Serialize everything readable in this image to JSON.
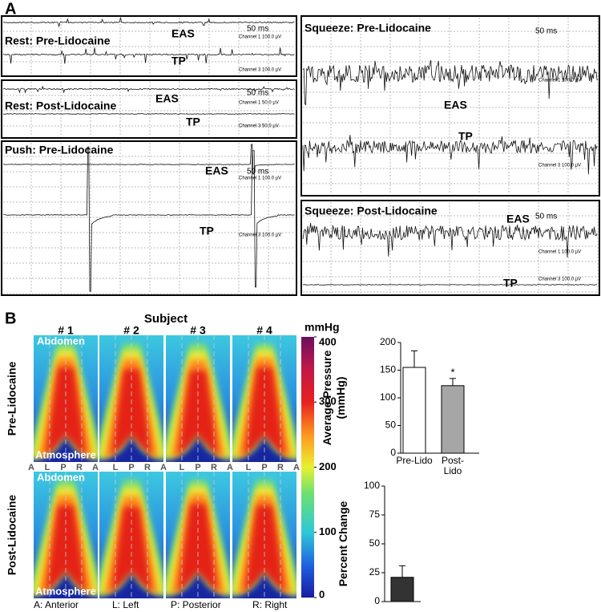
{
  "panel_a": {
    "label": "A",
    "panels": [
      {
        "title": "Rest: Pre-Lidocaine",
        "signals": [
          "EAS",
          "TP"
        ],
        "scale": "50 ms",
        "channels": [
          "Channel 1  100.0 µV",
          "Channel 3  100.0 µV"
        ]
      },
      {
        "title": "Rest: Post-Lidocaine",
        "signals": [
          "EAS",
          "TP"
        ],
        "scale": "50 ms",
        "channels": [
          "Channel 1  50.0 µV",
          "Channel 3  50.0 µV"
        ]
      },
      {
        "title": "Push: Pre-Lidocaine",
        "signals": [
          "EAS",
          "TP"
        ],
        "scale": "50 ms",
        "channels": [
          "Channel 1  100.0 µV",
          "Channel 3  100.0 µV"
        ]
      },
      {
        "title": "Squeeze: Pre-Lidocaine",
        "signals": [
          "EAS",
          "TP"
        ],
        "scale": "50 ms",
        "channels": [
          "Channel 1  100.0 µV",
          "Channel 3  100.0 µV"
        ]
      },
      {
        "title": "Squeeze: Post-Lidocaine",
        "signals": [
          "EAS",
          "TP"
        ],
        "scale": "50 ms",
        "channels": [
          "Channel 1  100.0 µV",
          "Channel 3  100.0 µV"
        ]
      }
    ]
  },
  "panel_b": {
    "label": "B",
    "heading": "Subject",
    "subjects": [
      "# 1",
      "# 2",
      "# 3",
      "# 4"
    ],
    "conditions": [
      "Pre-Lidocaine",
      "Post-Lidocaine"
    ],
    "top_label": "Abdomen",
    "bottom_label": "Atmosphere",
    "axis_letters": [
      "A",
      "L",
      "P",
      "R",
      "A"
    ],
    "legend": [
      "A: Anterior",
      "L: Left",
      "P: Posterior",
      "R: Right"
    ],
    "colorbar": {
      "unit": "mmHg",
      "lim": [
        0,
        400
      ],
      "ticks": [
        0,
        100,
        200,
        300,
        400
      ]
    }
  },
  "chart_data": [
    {
      "type": "bar",
      "y_label": "Average Pressure (mmHg)",
      "categories": [
        "Pre-Lido",
        "Post-Lido"
      ],
      "series": [
        {
          "values": [
            155,
            122
          ],
          "errors": [
            30,
            13
          ],
          "colors": [
            "#ffffff",
            "#a6a6a6"
          ]
        }
      ],
      "annotation": "*",
      "ylim": [
        0,
        200
      ],
      "yticks": [
        0,
        50,
        100,
        150,
        200
      ]
    },
    {
      "type": "bar",
      "y_label": "Percent Change",
      "series": [
        {
          "values": [
            21
          ],
          "errors": [
            10
          ],
          "color": "#333333"
        }
      ],
      "ylim": [
        0,
        100
      ],
      "yticks": [
        0,
        25,
        50,
        75,
        100
      ]
    }
  ]
}
